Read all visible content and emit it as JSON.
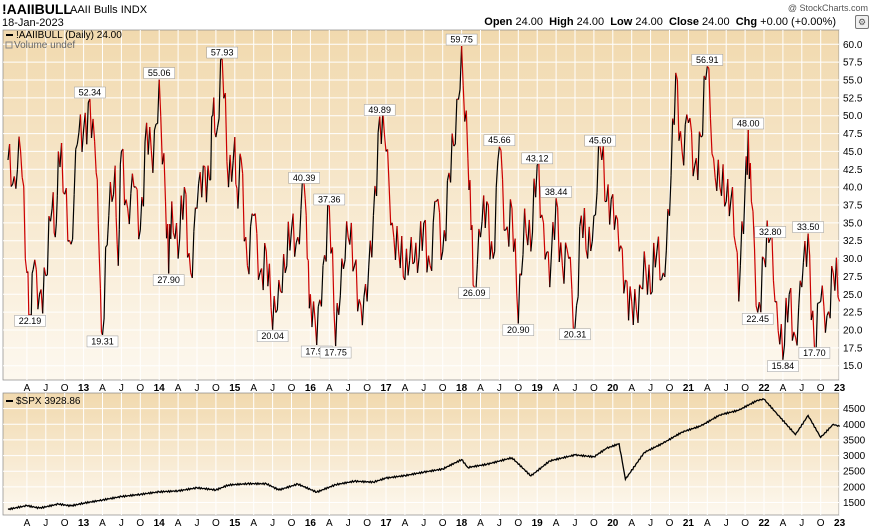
{
  "header": {
    "symbol": "!AAIIBULL",
    "name": "AAII Bulls",
    "exchange": "INDX",
    "date": "18-Jan-2023",
    "watermark": "@ StockCharts.com",
    "open_label": "Open",
    "open": "24.00",
    "high_label": "High",
    "high": "24.00",
    "low_label": "Low",
    "low": "24.00",
    "close_label": "Close",
    "close": "24.00",
    "chg_label": "Chg",
    "chg": "+0.00 (+0.00%)"
  },
  "legend": {
    "main": "!AAIIBULL (Daily) 24.00",
    "volume": "Volume undef",
    "lower": "$SPX 3928.86"
  },
  "colors": {
    "bg_top": "#f1d9ae",
    "bg_bottom": "#fdf8ef",
    "up": "#000000",
    "down": "#cc0000",
    "spx": "#000000",
    "grid": "#ffffff"
  },
  "chart_data": [
    {
      "type": "line",
      "series": [
        {
          "name": "!AAIIBULL",
          "points": [
            [
              "Jan 2012",
              43.8
            ],
            [
              "Feb 2012",
              41.5
            ],
            [
              "Mar 2012",
              45.0
            ],
            [
              "Apr 2012",
              28.0
            ],
            [
              "Apr 2012",
              22.19
            ],
            [
              "May 2012",
              28.5
            ],
            [
              "Jun 2012",
              25.0
            ],
            [
              "Jul 2012",
              27.6
            ],
            [
              "Aug 2012",
              37.0
            ],
            [
              "Aug 2012",
              33.0
            ],
            [
              "Sep 2012",
              45.0
            ],
            [
              "Oct 2012",
              39.0
            ],
            [
              "Nov 2012",
              32.0
            ],
            [
              "Dec 2012",
              46.0
            ],
            [
              "Jan 2013",
              48.0
            ],
            [
              "Feb 2013",
              52.34
            ],
            [
              "Mar 2013",
              42.0
            ],
            [
              "Mar 2013",
              30.0
            ],
            [
              "Apr 2013",
              19.31
            ],
            [
              "May 2013",
              36.0
            ],
            [
              "Jun 2013",
              43.0
            ],
            [
              "Jun 2013",
              29.0
            ],
            [
              "Jul 2013",
              45.0
            ],
            [
              "Aug 2013",
              37.0
            ],
            [
              "Sep 2013",
              40.0
            ],
            [
              "Oct 2013",
              34.0
            ],
            [
              "Nov 2013",
              49.0
            ],
            [
              "Dec 2013",
              42.0
            ],
            [
              "Jan 2014",
              55.06
            ],
            [
              "Feb 2014",
              38.0
            ],
            [
              "Feb 2014",
              27.9
            ],
            [
              "Mar 2014",
              38.0
            ],
            [
              "Apr 2014",
              30.0
            ],
            [
              "May 2014",
              40.0
            ],
            [
              "Jun 2014",
              28.0
            ],
            [
              "Jul 2014",
              37.0
            ],
            [
              "Aug 2014",
              43.0
            ],
            [
              "Sep 2014",
              41.0
            ],
            [
              "Sep 2014",
              50.0
            ],
            [
              "Oct 2014",
              47.0
            ],
            [
              "Nov 2014",
              57.93
            ],
            [
              "Dec 2014",
              40.0
            ],
            [
              "Jan 2015",
              47.0
            ],
            [
              "Jan 2015",
              37.0
            ],
            [
              "Feb 2015",
              44.0
            ],
            [
              "Mar 2015",
              29.0
            ],
            [
              "Apr 2015",
              36.0
            ],
            [
              "May 2015",
              28.0
            ],
            [
              "Jun 2015",
              31.0
            ],
            [
              "Jul 2015",
              20.04
            ],
            [
              "Aug 2015",
              27.0
            ],
            [
              "Sep 2015",
              28.0
            ],
            [
              "Oct 2015",
              34.0
            ],
            [
              "Nov 2015",
              33.0
            ],
            [
              "Dec 2015",
              40.39
            ],
            [
              "Dec 2015",
              30.0
            ],
            [
              "Jan 2016",
              25.0
            ],
            [
              "Feb 2016",
              17.9
            ],
            [
              "Mar 2016",
              29.0
            ],
            [
              "Apr 2016",
              37.36
            ],
            [
              "May 2016",
              17.75
            ],
            [
              "Jun 2016",
              30.0
            ],
            [
              "Jul 2016",
              33.0
            ],
            [
              "Aug 2016",
              29.0
            ],
            [
              "Sep 2016",
              23.5
            ],
            [
              "Oct 2016",
              24.0
            ],
            [
              "Nov 2016",
              36.0
            ],
            [
              "Dec 2016",
              49.89
            ],
            [
              "Jan 2017",
              45.0
            ],
            [
              "Feb 2017",
              35.0
            ],
            [
              "Mar 2017",
              31.0
            ],
            [
              "Apr 2017",
              27.0
            ],
            [
              "May 2017",
              33.0
            ],
            [
              "Jun 2017",
              28.0
            ],
            [
              "Jul 2017",
              35.0
            ],
            [
              "Aug 2017",
              29.0
            ],
            [
              "Sep 2017",
              38.0
            ],
            [
              "Oct 2017",
              31.0
            ],
            [
              "Nov 2017",
              42.0
            ],
            [
              "Dec 2017",
              46.0
            ],
            [
              "Jan 2018",
              59.75
            ],
            [
              "Feb 2018",
              44.0
            ],
            [
              "Feb 2018",
              34.0
            ],
            [
              "Mar 2018",
              26.09
            ],
            [
              "Apr 2018",
              33.0
            ],
            [
              "May 2018",
              38.0
            ],
            [
              "Jun 2018",
              30.0
            ],
            [
              "Jul 2018",
              45.66
            ],
            [
              "Aug 2018",
              34.0
            ],
            [
              "Sep 2018",
              37.0
            ],
            [
              "Oct 2018",
              20.9
            ],
            [
              "Nov 2018",
              37.0
            ],
            [
              "Dec 2018",
              31.0
            ],
            [
              "Jan 2019",
              43.12
            ],
            [
              "Feb 2019",
              35.0
            ],
            [
              "Mar 2019",
              26.0
            ],
            [
              "Apr 2019",
              38.44
            ],
            [
              "May 2019",
              29.0
            ],
            [
              "Jun 2019",
              30.0
            ],
            [
              "Jul 2019",
              20.31
            ],
            [
              "Aug 2019",
              36.0
            ],
            [
              "Sep 2019",
              30.0
            ],
            [
              "Oct 2019",
              36.0
            ],
            [
              "Nov 2019",
              45.6
            ],
            [
              "Dec 2019",
              38.0
            ],
            [
              "Jan 2020",
              39.0
            ],
            [
              "Feb 2020",
              31.0
            ],
            [
              "Mar 2020",
              27.0
            ],
            [
              "Apr 2020",
              24.0
            ],
            [
              "May 2020",
              21.0
            ],
            [
              "Jun 2020",
              31.0
            ],
            [
              "Jul 2020",
              25.0
            ],
            [
              "Aug 2020",
              31.0
            ],
            [
              "Sep 2020",
              28.0
            ],
            [
              "Oct 2020",
              36.0
            ],
            [
              "Nov 2020",
              56.0
            ],
            [
              "Dec 2020",
              45.0
            ],
            [
              "Jan 2021",
              49.0
            ],
            [
              "Feb 2021",
              43.0
            ],
            [
              "Mar 2021",
              47.0
            ],
            [
              "Apr 2021",
              56.91
            ],
            [
              "May 2021",
              44.0
            ],
            [
              "Jun 2021",
              40.0
            ],
            [
              "Jul 2021",
              38.0
            ],
            [
              "Aug 2021",
              40.0
            ],
            [
              "Sep 2021",
              24.0
            ],
            [
              "Oct 2021",
              40.0
            ],
            [
              "Oct 2021",
              48.0
            ],
            [
              "Nov 2021",
              38.0
            ],
            [
              "Dec 2021",
              22.45
            ],
            [
              "Jan 2022",
              30.0
            ],
            [
              "Feb 2022",
              32.8
            ],
            [
              "Mar 2022",
              24.0
            ],
            [
              "Apr 2022",
              15.84
            ],
            [
              "May 2022",
              25.0
            ],
            [
              "Jun 2022",
              19.0
            ],
            [
              "Jul 2022",
              26.0
            ],
            [
              "Aug 2022",
              33.5
            ],
            [
              "Sep 2022",
              17.7
            ],
            [
              "Oct 2022",
              24.0
            ],
            [
              "Nov 2022",
              22.0
            ],
            [
              "Dec 2022",
              28.0
            ],
            [
              "Jan 2023",
              24.0
            ]
          ]
        }
      ],
      "annotations": [
        {
          "x": "Apr 2012",
          "label": "22.19"
        },
        {
          "x": "Feb 2013",
          "label": "52.34"
        },
        {
          "x": "Apr 2013",
          "label": "19.31"
        },
        {
          "x": "Jan 2014",
          "label": "55.06"
        },
        {
          "x": "Feb 2014",
          "label": "27.90"
        },
        {
          "x": "Nov 2014",
          "label": "57.93"
        },
        {
          "x": "Jul 2015",
          "label": "20.04"
        },
        {
          "x": "Dec 2015",
          "label": "40.39"
        },
        {
          "x": "Feb 2016",
          "label": "17.90"
        },
        {
          "x": "Apr 2016",
          "label": "37.36"
        },
        {
          "x": "May 2016",
          "label": "17.75"
        },
        {
          "x": "Dec 2016",
          "label": "49.89"
        },
        {
          "x": "Jan 2018",
          "label": "59.75"
        },
        {
          "x": "Mar 2018",
          "label": "26.09"
        },
        {
          "x": "Jul 2018",
          "label": "45.66"
        },
        {
          "x": "Oct 2018",
          "label": "20.90"
        },
        {
          "x": "Jan 2019",
          "label": "43.12"
        },
        {
          "x": "Apr 2019",
          "label": "38.44"
        },
        {
          "x": "Jul 2019",
          "label": "20.31"
        },
        {
          "x": "Nov 2019",
          "label": "45.60"
        },
        {
          "x": "Apr 2021",
          "label": "56.91"
        },
        {
          "x": "Oct 2021",
          "label": "48.00"
        },
        {
          "x": "Dec 2021",
          "label": "22.45"
        },
        {
          "x": "Feb 2022",
          "label": "32.80"
        },
        {
          "x": "Apr 2022",
          "label": "15.84"
        },
        {
          "x": "Aug 2022",
          "label": "33.50"
        },
        {
          "x": "Sep 2022",
          "label": "17.70"
        }
      ],
      "ylim": [
        13,
        62
      ],
      "yticks": [
        "60.0",
        "57.5",
        "55.0",
        "52.5",
        "50.0",
        "47.5",
        "45.0",
        "42.5",
        "40.0",
        "37.5",
        "35.0",
        "32.5",
        "30.0",
        "27.5",
        "25.0",
        "22.5",
        "20.0",
        "17.5",
        "15.0"
      ],
      "grid": true
    },
    {
      "type": "line",
      "series": [
        {
          "name": "$SPX",
          "points": [
            [
              "Jan 2012",
              1280
            ],
            [
              "Apr 2012",
              1400
            ],
            [
              "Jun 2012",
              1320
            ],
            [
              "Sep 2012",
              1450
            ],
            [
              "Nov 2012",
              1390
            ],
            [
              "Jan 2013",
              1480
            ],
            [
              "Apr 2013",
              1580
            ],
            [
              "Jul 2013",
              1690
            ],
            [
              "Oct 2013",
              1760
            ],
            [
              "Jan 2014",
              1840
            ],
            [
              "Apr 2014",
              1870
            ],
            [
              "Jul 2014",
              1970
            ],
            [
              "Oct 2014",
              1900
            ],
            [
              "Dec 2014",
              2060
            ],
            [
              "Mar 2015",
              2100
            ],
            [
              "Jun 2015",
              2100
            ],
            [
              "Aug 2015",
              1900
            ],
            [
              "Nov 2015",
              2090
            ],
            [
              "Feb 2016",
              1830
            ],
            [
              "May 2016",
              2070
            ],
            [
              "Aug 2016",
              2180
            ],
            [
              "Nov 2016",
              2150
            ],
            [
              "Jan 2017",
              2280
            ],
            [
              "Apr 2017",
              2360
            ],
            [
              "Jul 2017",
              2470
            ],
            [
              "Oct 2017",
              2570
            ],
            [
              "Jan 2018",
              2870
            ],
            [
              "Feb 2018",
              2620
            ],
            [
              "May 2018",
              2720
            ],
            [
              "Sep 2018",
              2930
            ],
            [
              "Dec 2018",
              2350
            ],
            [
              "Mar 2019",
              2830
            ],
            [
              "Jul 2019",
              3020
            ],
            [
              "Oct 2019",
              2960
            ],
            [
              "Dec 2019",
              3230
            ],
            [
              "Feb 2020",
              3380
            ],
            [
              "Mar 2020",
              2240
            ],
            [
              "Jun 2020",
              3100
            ],
            [
              "Sep 2020",
              3400
            ],
            [
              "Dec 2020",
              3750
            ],
            [
              "Mar 2021",
              3950
            ],
            [
              "Jun 2021",
              4300
            ],
            [
              "Sep 2021",
              4450
            ],
            [
              "Dec 2021",
              4770
            ],
            [
              "Jan 2022",
              4800
            ],
            [
              "Mar 2022",
              4350
            ],
            [
              "Jun 2022",
              3670
            ],
            [
              "Aug 2022",
              4280
            ],
            [
              "Oct 2022",
              3580
            ],
            [
              "Dec 2022",
              4000
            ],
            [
              "Jan 2023",
              3928.86
            ]
          ]
        }
      ],
      "ylim": [
        1100,
        5000
      ],
      "yticks": [
        "4500",
        "4000",
        "3500",
        "3000",
        "2500",
        "2000",
        "1500"
      ],
      "grid": true
    }
  ],
  "xaxis": {
    "ticks": [
      "A",
      "J",
      "O",
      "13",
      "A",
      "J",
      "O",
      "14",
      "A",
      "J",
      "O",
      "15",
      "A",
      "J",
      "O",
      "16",
      "A",
      "J",
      "O",
      "17",
      "A",
      "J",
      "O",
      "18",
      "A",
      "J",
      "O",
      "19",
      "A",
      "J",
      "O",
      "20",
      "A",
      "J",
      "O",
      "21",
      "A",
      "J",
      "O",
      "22",
      "A",
      "J",
      "O",
      "23"
    ]
  }
}
